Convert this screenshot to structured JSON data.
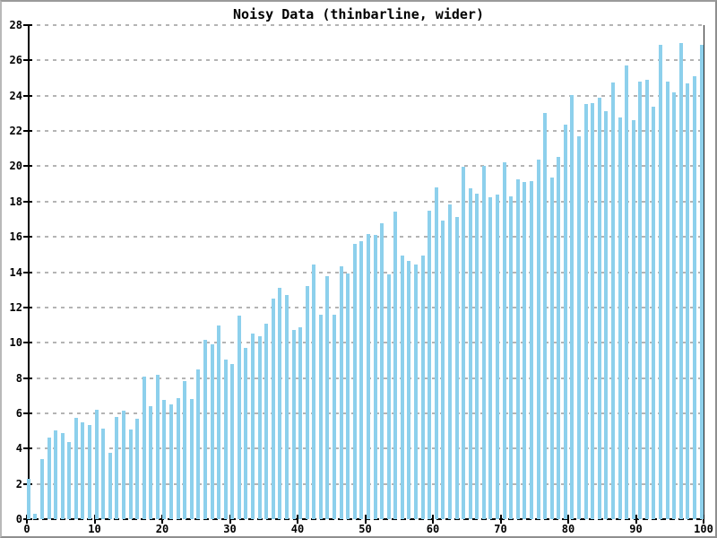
{
  "window": {
    "background_color": "#ffffff",
    "frame_color": "#9a9a9a"
  },
  "chart_data": {
    "type": "bar",
    "title": "Noisy Data (thinbarline, wider)",
    "xlabel": "",
    "ylabel": "",
    "xlim": [
      0,
      100
    ],
    "ylim": [
      0,
      28
    ],
    "x_ticks": [
      0,
      10,
      20,
      30,
      40,
      50,
      60,
      70,
      80,
      90,
      100
    ],
    "y_ticks": [
      0,
      2,
      4,
      6,
      8,
      10,
      12,
      14,
      16,
      18,
      20,
      22,
      24,
      26,
      28
    ],
    "grid": "horizontal-dashed-gray",
    "legend": null,
    "bar_color": "#8DD0EC",
    "bar_style": "thin",
    "x": [
      1,
      2,
      3,
      4,
      5,
      6,
      7,
      8,
      9,
      10,
      11,
      12,
      13,
      14,
      15,
      16,
      17,
      18,
      19,
      20,
      21,
      22,
      23,
      24,
      25,
      26,
      27,
      28,
      29,
      30,
      31,
      32,
      33,
      34,
      35,
      36,
      37,
      38,
      39,
      40,
      41,
      42,
      43,
      44,
      45,
      46,
      47,
      48,
      49,
      50,
      51,
      52,
      53,
      54,
      55,
      56,
      57,
      58,
      59,
      60,
      61,
      62,
      63,
      64,
      65,
      66,
      67,
      68,
      69,
      70,
      71,
      72,
      73,
      74,
      75,
      76,
      77,
      78,
      79,
      80,
      81,
      82,
      83,
      84,
      85,
      86,
      87,
      88,
      89,
      90,
      91,
      92,
      93,
      94,
      95,
      96,
      97,
      98,
      99,
      100
    ],
    "values": [
      2.3,
      0.3,
      3.4,
      4.6,
      5.05,
      4.9,
      4.35,
      5.75,
      5.5,
      5.35,
      6.2,
      5.15,
      3.75,
      5.8,
      6.15,
      5.1,
      5.7,
      8.1,
      6.4,
      8.2,
      6.75,
      6.5,
      6.85,
      7.85,
      6.8,
      8.5,
      10.15,
      9.9,
      11.0,
      9.05,
      8.8,
      11.55,
      9.7,
      10.5,
      10.35,
      11.1,
      12.5,
      13.1,
      12.7,
      10.7,
      10.85,
      13.2,
      14.45,
      11.6,
      13.75,
      11.6,
      14.35,
      13.9,
      15.6,
      15.75,
      16.15,
      16.1,
      16.75,
      13.85,
      17.45,
      14.95,
      14.65,
      14.45,
      14.95,
      17.5,
      18.8,
      16.9,
      17.85,
      17.1,
      19.95,
      18.75,
      18.45,
      20.0,
      18.25,
      18.4,
      20.2,
      18.3,
      19.25,
      19.1,
      19.15,
      20.4,
      23.0,
      19.35,
      20.55,
      22.35,
      24.05,
      21.7,
      23.55,
      23.6,
      23.9,
      23.1,
      24.75,
      22.75,
      25.7,
      22.6,
      24.8,
      24.9,
      23.4,
      26.9,
      24.8,
      24.2,
      27.0,
      24.7,
      25.1,
      26.9
    ]
  }
}
